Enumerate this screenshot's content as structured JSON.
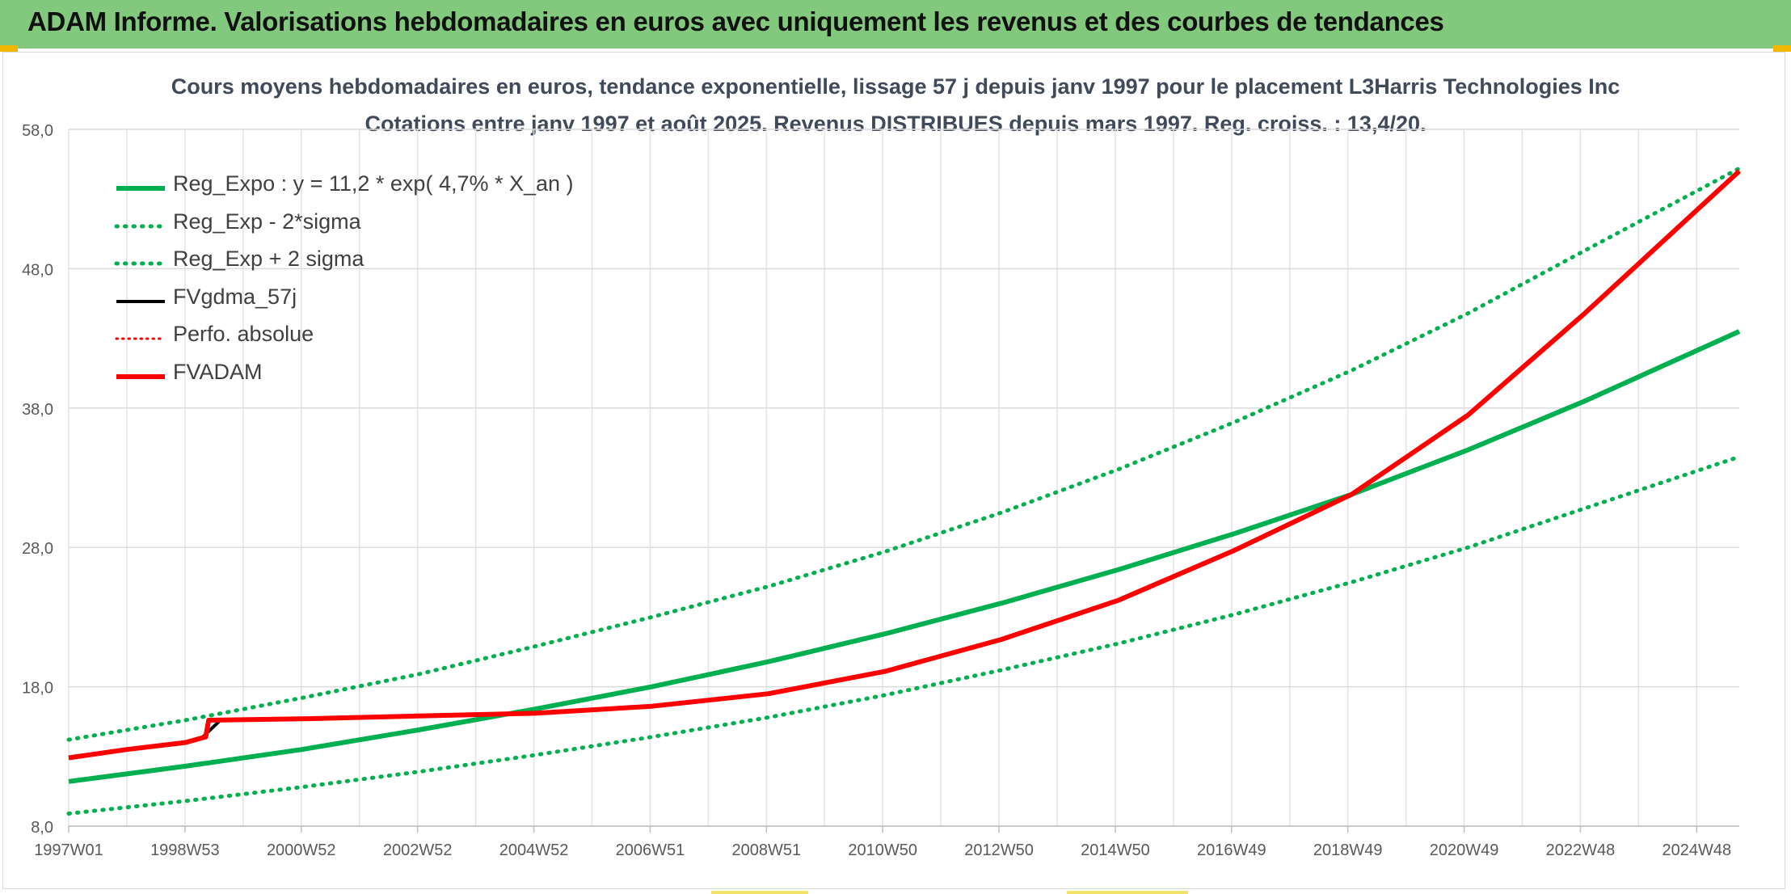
{
  "header": {
    "title": "ADAM Informe. Valorisations hebdomadaires en euros avec uniquement les revenus et des courbes de tendances"
  },
  "colors": {
    "header_bg": "#82c97d",
    "accent": "#f2b705",
    "reg_green": "#00b050",
    "black": "#000000",
    "red": "#ff0000"
  },
  "chart_data": {
    "type": "line",
    "title": "Cours moyens hebdomadaires en euros, tendance exponentielle, lissage 57 j depuis janv 1997 pour le placement L3Harris Technologies Inc",
    "subtitle": "Cotations entre janv 1997 et août 2025. Revenus DISTRIBUES depuis mars 1997. Reg. croiss. : 13,4/20.",
    "ylim": [
      8.0,
      58.0
    ],
    "y_ticks": [
      "8,0",
      "18,0",
      "28,0",
      "38,0",
      "48,0",
      "58,0"
    ],
    "x_tick_labels": [
      "1997W01",
      "1998W53",
      "2000W52",
      "2002W52",
      "2004W52",
      "2006W51",
      "2008W51",
      "2010W50",
      "2012W50",
      "2014W50",
      "2016W49",
      "2018W49",
      "2020W49",
      "2022W48",
      "2024W48"
    ],
    "xlim": [
      1997.0,
      2025.65
    ],
    "grid": true,
    "legend_position": "top-left",
    "series": [
      {
        "name": "Reg_Expo : y = 11,2 * exp( 4,7% *  X_an )",
        "style": "solid-green",
        "x": [
          1997.0,
          1999.0,
          2001.0,
          2003.0,
          2005.0,
          2007.0,
          2009.0,
          2011.0,
          2013.0,
          2015.0,
          2017.0,
          2019.0,
          2021.0,
          2023.0,
          2025.65
        ],
        "y": [
          11.2,
          12.3,
          13.5,
          14.9,
          16.4,
          18.0,
          19.8,
          21.8,
          24.0,
          26.4,
          29.0,
          31.8,
          35.0,
          38.5,
          43.5
        ]
      },
      {
        "name": "Reg_Exp - 2*sigma",
        "style": "dotted-green",
        "x": [
          1997.0,
          1999.0,
          2001.0,
          2003.0,
          2005.0,
          2007.0,
          2009.0,
          2011.0,
          2013.0,
          2015.0,
          2017.0,
          2019.0,
          2021.0,
          2023.0,
          2025.65
        ],
        "y": [
          8.9,
          9.8,
          10.8,
          11.9,
          13.1,
          14.4,
          15.8,
          17.4,
          19.2,
          21.1,
          23.2,
          25.5,
          28.0,
          30.8,
          34.5
        ]
      },
      {
        "name": "Reg_Exp + 2 sigma",
        "style": "dotted-green",
        "x": [
          1997.0,
          1999.0,
          2001.0,
          2003.0,
          2005.0,
          2007.0,
          2009.0,
          2011.0,
          2013.0,
          2015.0,
          2017.0,
          2019.0,
          2021.0,
          2023.0,
          2025.65
        ],
        "y": [
          14.2,
          15.6,
          17.2,
          18.9,
          20.9,
          23.0,
          25.2,
          27.7,
          30.5,
          33.6,
          37.0,
          40.7,
          44.8,
          49.3,
          55.2
        ]
      },
      {
        "name": "FVgdma_57j",
        "style": "solid-black",
        "x": [
          1997.0,
          1998.0,
          1999.0,
          1999.3,
          1999.6,
          2001.0,
          2003.0,
          2005.0,
          2007.0,
          2009.0,
          2011.0,
          2013.0,
          2015.0,
          2017.0,
          2019.0,
          2021.0,
          2023.0,
          2025.0,
          2025.65
        ],
        "y": [
          12.9,
          13.5,
          14.0,
          14.4,
          15.6,
          15.7,
          15.9,
          16.1,
          16.6,
          17.5,
          19.1,
          21.4,
          24.2,
          27.8,
          31.8,
          37.5,
          44.8,
          52.5,
          55.0
        ]
      },
      {
        "name": "Perfo. absolue",
        "style": "dotted-red",
        "x": [],
        "y": []
      },
      {
        "name": "FVADAM",
        "style": "solid-red",
        "x": [
          1997.0,
          1998.0,
          1999.0,
          1999.35,
          1999.4,
          2001.0,
          2003.0,
          2005.0,
          2007.0,
          2009.0,
          2011.0,
          2013.0,
          2015.0,
          2017.0,
          2019.0,
          2021.0,
          2023.0,
          2025.0,
          2025.65
        ],
        "y": [
          12.9,
          13.5,
          14.0,
          14.4,
          15.6,
          15.7,
          15.9,
          16.1,
          16.6,
          17.5,
          19.1,
          21.4,
          24.2,
          27.8,
          31.8,
          37.5,
          44.8,
          52.5,
          55.0
        ]
      }
    ]
  }
}
